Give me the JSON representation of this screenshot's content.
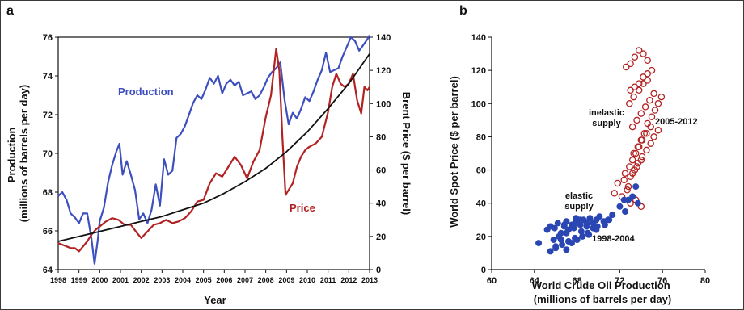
{
  "chart_data": [
    {
      "panel_label": "a",
      "type": "line",
      "xlabel": "Year",
      "ylabel_left": "Production\n(millions of barrels per day)",
      "ylabel_right": "Brent Price ($ per barrel)",
      "xlim": [
        1998,
        2013
      ],
      "ylim_left": [
        64,
        76
      ],
      "ylim_right": [
        0,
        140
      ],
      "x_ticks": [
        "1998",
        "1999",
        "2000",
        "2001",
        "2002",
        "2003",
        "2004",
        "2005",
        "2006",
        "2007",
        "2008",
        "2009",
        "2010",
        "2011",
        "2012",
        "2013"
      ],
      "y_left_ticks": [
        64,
        66,
        68,
        70,
        72,
        74,
        76
      ],
      "y_right_ticks": [
        0,
        20,
        40,
        60,
        80,
        100,
        120,
        140
      ],
      "colors": {
        "production": "#3d4fbf",
        "price": "#b22222",
        "trend": "#111111"
      },
      "annotations": [
        {
          "text": "Production",
          "color": "#3d4fbf"
        },
        {
          "text": "Price",
          "color": "#b22222"
        }
      ],
      "series": [
        {
          "name": "Production",
          "axis": "left",
          "x": [
            1998.0,
            1998.2,
            1998.4,
            1998.6,
            1998.8,
            1999.0,
            1999.2,
            1999.4,
            1999.6,
            1999.75,
            1999.9,
            2000.0,
            2000.2,
            2000.4,
            2000.6,
            2000.8,
            2000.95,
            2001.1,
            2001.3,
            2001.5,
            2001.7,
            2001.9,
            2002.1,
            2002.3,
            2002.5,
            2002.7,
            2002.9,
            2003.1,
            2003.3,
            2003.5,
            2003.7,
            2003.9,
            2004.1,
            2004.3,
            2004.5,
            2004.7,
            2004.9,
            2005.1,
            2005.3,
            2005.5,
            2005.7,
            2005.9,
            2006.1,
            2006.3,
            2006.5,
            2006.7,
            2006.9,
            2007.1,
            2007.3,
            2007.5,
            2007.7,
            2007.9,
            2008.1,
            2008.3,
            2008.5,
            2008.7,
            2008.9,
            2009.1,
            2009.3,
            2009.5,
            2009.7,
            2009.9,
            2010.1,
            2010.3,
            2010.5,
            2010.7,
            2010.9,
            2011.1,
            2011.3,
            2011.5,
            2011.7,
            2011.9,
            2012.1,
            2012.3,
            2012.5,
            2012.7,
            2012.9,
            2013.0
          ],
          "values": [
            67.8,
            68.0,
            67.6,
            66.9,
            66.7,
            66.4,
            66.9,
            66.9,
            65.6,
            64.3,
            65.5,
            66.5,
            67.2,
            68.5,
            69.4,
            70.1,
            70.5,
            68.9,
            69.6,
            68.9,
            68.1,
            66.6,
            66.9,
            66.4,
            67.1,
            68.4,
            67.3,
            69.7,
            68.9,
            69.1,
            70.8,
            71.0,
            71.4,
            72.0,
            72.6,
            73.0,
            72.8,
            73.3,
            73.9,
            73.6,
            74.0,
            73.1,
            73.6,
            73.8,
            73.5,
            73.7,
            73.0,
            73.1,
            73.2,
            72.8,
            73.0,
            73.4,
            73.9,
            74.2,
            74.4,
            74.7,
            72.8,
            71.5,
            72.1,
            71.8,
            72.3,
            72.9,
            72.7,
            73.2,
            73.8,
            74.3,
            75.2,
            74.2,
            74.3,
            74.4,
            75.0,
            75.5,
            76.0,
            75.8,
            75.3,
            75.6,
            75.9,
            76.1
          ]
        },
        {
          "name": "Price",
          "axis": "right",
          "x": [
            1998.0,
            1998.2,
            1998.4,
            1998.6,
            1998.8,
            1999.0,
            1999.2,
            1999.4,
            1999.6,
            1999.8,
            2000.0,
            2000.3,
            2000.6,
            2000.9,
            2001.2,
            2001.5,
            2001.8,
            2002.0,
            2002.3,
            2002.6,
            2002.9,
            2003.2,
            2003.5,
            2003.8,
            2004.1,
            2004.4,
            2004.7,
            2005.0,
            2005.3,
            2005.6,
            2005.9,
            2006.2,
            2006.5,
            2006.8,
            2007.1,
            2007.4,
            2007.7,
            2008.0,
            2008.25,
            2008.5,
            2008.65,
            2008.8,
            2008.95,
            2009.1,
            2009.3,
            2009.5,
            2009.7,
            2009.9,
            2010.1,
            2010.4,
            2010.7,
            2011.0,
            2011.2,
            2011.4,
            2011.6,
            2011.8,
            2012.0,
            2012.2,
            2012.4,
            2012.6,
            2012.75,
            2012.9,
            2013.0
          ],
          "values": [
            16,
            15,
            14,
            13,
            13,
            11,
            14,
            17,
            21,
            24,
            26,
            29,
            31,
            30,
            27,
            27,
            22,
            19,
            23,
            27,
            28,
            30,
            28,
            29,
            31,
            35,
            41,
            42,
            52,
            58,
            56,
            62,
            68,
            63,
            55,
            65,
            72,
            92,
            105,
            133,
            120,
            80,
            45,
            48,
            52,
            62,
            68,
            72,
            74,
            76,
            80,
            95,
            110,
            118,
            112,
            110,
            112,
            118,
            102,
            94,
            110,
            108,
            110
          ]
        },
        {
          "name": "",
          "axis": "right",
          "x": [
            1998,
            1999,
            2000,
            2001,
            2002,
            2003,
            2004,
            2005,
            2006,
            2007,
            2008,
            2009,
            2010,
            2011,
            2012,
            2013
          ],
          "values": [
            17,
            20,
            23,
            26,
            29,
            32,
            36,
            40,
            46,
            53,
            61,
            71,
            83,
            97,
            112,
            130
          ]
        }
      ]
    },
    {
      "panel_label": "b",
      "type": "scatter",
      "xlabel": "World Crude Oil Production\n(millions of barrels per day)",
      "ylabel": "World Spot Price  ($ per barrel)",
      "xlim": [
        60,
        80
      ],
      "ylim": [
        0,
        140
      ],
      "x_ticks": [
        60,
        64,
        68,
        72,
        76,
        80
      ],
      "y_ticks": [
        0,
        20,
        40,
        60,
        80,
        100,
        120,
        140
      ],
      "colors": {
        "elastic": "#2a46b3",
        "inelastic": "#b22222"
      },
      "annotations": [
        {
          "text": "inelastic\nsupply",
          "color": "#111111"
        },
        {
          "text": "2005-2012",
          "color": "#111111"
        },
        {
          "text": "elastic\nsupply",
          "color": "#111111"
        },
        {
          "text": "1998-2004",
          "color": "#111111"
        }
      ],
      "series": [
        {
          "name": "1998-2004",
          "marker": "filled",
          "x": [
            64.4,
            65.2,
            65.5,
            65.9,
            66.2,
            66.5,
            66.8,
            67.0,
            67.2,
            67.5,
            67.8,
            68.0,
            68.3,
            68.6,
            68.9,
            69.2,
            69.5,
            69.8,
            70.1,
            70.5,
            70.9,
            71.3,
            72.0,
            72.4,
            72.8,
            73.2,
            73.5,
            66.0,
            66.5,
            67.0,
            67.5,
            68.0,
            68.5,
            69.0,
            69.5,
            65.5,
            66.0,
            66.6,
            67.2,
            67.8,
            68.4,
            69.1,
            69.8,
            70.6,
            66.3,
            67.0,
            67.7,
            68.3,
            65.8,
            66.8,
            67.9,
            68.9,
            69.9,
            71.0,
            72.5,
            73.7
          ],
          "values": [
            16,
            24,
            26,
            25,
            28,
            22,
            27,
            29,
            24,
            27,
            28,
            29,
            27,
            30,
            26,
            31,
            28,
            30,
            32,
            29,
            30,
            33,
            38,
            42,
            42,
            44,
            50,
            14,
            18,
            12,
            16,
            18,
            20,
            22,
            25,
            11,
            13,
            15,
            17,
            19,
            23,
            21,
            24,
            27,
            20,
            22,
            25,
            30,
            18,
            26,
            31,
            28,
            26,
            30,
            35,
            40
          ]
        },
        {
          "name": "2005-2012",
          "marker": "open",
          "x": [
            71.5,
            71.8,
            72.2,
            72.5,
            72.9,
            73.2,
            73.5,
            73.8,
            74.0,
            74.3,
            74.6,
            75.0,
            75.3,
            75.6,
            75.9,
            72.7,
            73.0,
            73.4,
            73.7,
            74.1,
            74.5,
            74.9,
            75.2,
            75.6,
            73.2,
            73.6,
            74.0,
            74.4,
            74.8,
            75.2,
            73.0,
            73.4,
            73.8,
            74.2,
            74.6,
            75.0,
            72.6,
            73.0,
            73.4,
            73.8,
            74.2,
            74.6,
            72.4,
            72.8,
            73.2,
            73.6,
            74.0,
            73.3,
            73.7,
            74.1,
            74.5,
            74.9,
            72.9,
            73.3,
            73.8,
            74.2,
            74.6,
            73.0,
            73.5,
            74.0
          ],
          "values": [
            46,
            52,
            44,
            58,
            62,
            66,
            70,
            74,
            78,
            82,
            88,
            92,
            96,
            100,
            104,
            48,
            56,
            60,
            64,
            68,
            72,
            76,
            80,
            84,
            86,
            90,
            94,
            98,
            102,
            106,
            108,
            110,
            112,
            116,
            118,
            120,
            122,
            124,
            128,
            132,
            130,
            126,
            54,
            50,
            58,
            62,
            66,
            70,
            74,
            78,
            82,
            86,
            100,
            104,
            108,
            112,
            114,
            40,
            42,
            38
          ]
        }
      ]
    }
  ]
}
